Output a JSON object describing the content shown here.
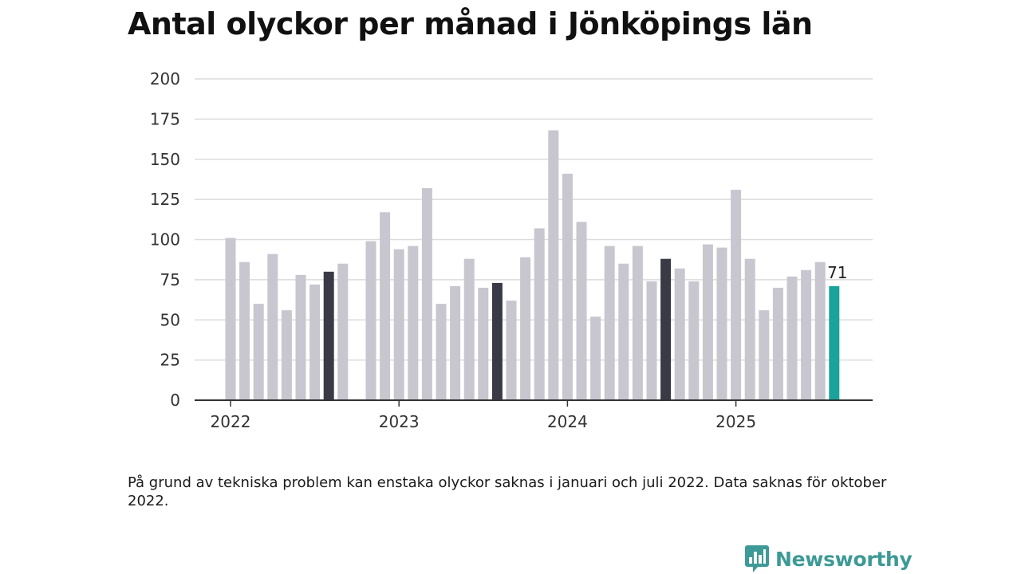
{
  "chart_data": {
    "type": "bar",
    "title": "Antal olyckor per månad i Jönköpings län",
    "xlabel": "",
    "ylabel": "",
    "ylim": [
      0,
      200
    ],
    "yticks": [
      0,
      25,
      50,
      75,
      100,
      125,
      150,
      175,
      200
    ],
    "x_ticks": [
      {
        "label": "2022",
        "month_index": 0
      },
      {
        "label": "2023",
        "month_index": 12
      },
      {
        "label": "2024",
        "month_index": 24
      },
      {
        "label": "2025",
        "month_index": 36
      }
    ],
    "categories": [
      "2022-01",
      "2022-02",
      "2022-03",
      "2022-04",
      "2022-05",
      "2022-06",
      "2022-07",
      "2022-08",
      "2022-09",
      "2022-10",
      "2022-11",
      "2022-12",
      "2023-01",
      "2023-02",
      "2023-03",
      "2023-04",
      "2023-05",
      "2023-06",
      "2023-07",
      "2023-08",
      "2023-09",
      "2023-10",
      "2023-11",
      "2023-12",
      "2024-01",
      "2024-02",
      "2024-03",
      "2024-04",
      "2024-05",
      "2024-06",
      "2024-07",
      "2024-08",
      "2024-09",
      "2024-10",
      "2024-11",
      "2024-12",
      "2025-01",
      "2025-02",
      "2025-03",
      "2025-04",
      "2025-05",
      "2025-06",
      "2025-07",
      "2025-08"
    ],
    "values": [
      101,
      86,
      60,
      91,
      56,
      78,
      72,
      80,
      85,
      null,
      99,
      117,
      94,
      96,
      132,
      60,
      71,
      88,
      70,
      73,
      62,
      89,
      107,
      168,
      141,
      111,
      52,
      96,
      85,
      96,
      74,
      88,
      82,
      74,
      97,
      95,
      131,
      88,
      56,
      70,
      77,
      81,
      86,
      71
    ],
    "highlight_months": [
      "2022-08",
      "2023-08",
      "2024-08"
    ],
    "latest_month": "2025-08",
    "latest_label": "71",
    "grid": true,
    "legend": "none",
    "colors": {
      "bar": "#c8c7d0",
      "highlight": "#3a3a46",
      "latest": "#1aa39b",
      "grid": "#dcdcdc",
      "axis": "#333333"
    }
  },
  "note": "På grund av tekniska problem kan enstaka olyckor saknas i januari och juli 2022. Data saknas för oktober 2022.",
  "brand": {
    "name": "Newsworthy",
    "icon": "newsworthy-logo-icon",
    "color": "#3d9a96"
  }
}
